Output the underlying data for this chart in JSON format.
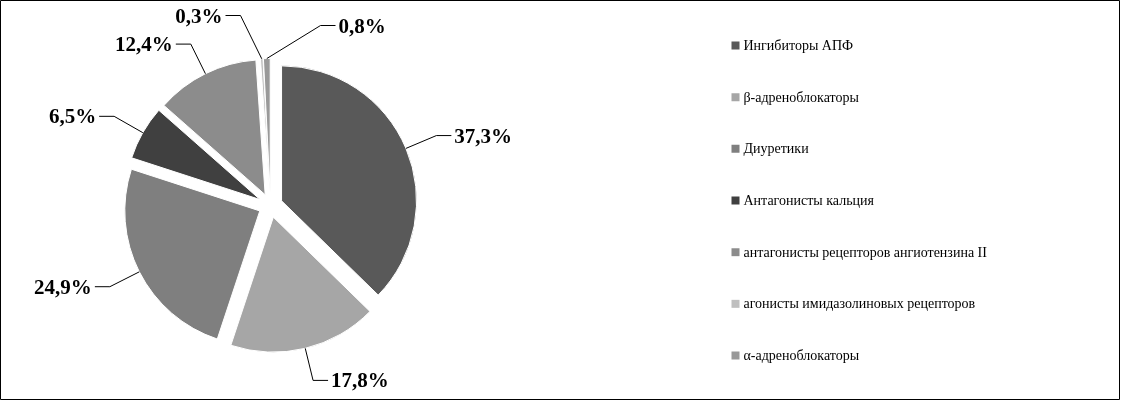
{
  "chart_data": {
    "type": "pie",
    "categories": [
      "Ингибиторы  АПФ",
      "β-адреноблокаторы",
      "Диуретики",
      "Антагонисты  кальция",
      "антагонисты  рецепторов ангиотензина  II",
      "агонисты имидазолиновых  рецепторов",
      "α-адреноблокаторы"
    ],
    "values": [
      37.3,
      17.8,
      24.9,
      6.5,
      12.4,
      0.3,
      0.8
    ],
    "colors": [
      "#595959",
      "#a6a6a6",
      "#7f7f7f",
      "#404040",
      "#8c8c8c",
      "#bfbfbf",
      "#999999"
    ],
    "value_labels": [
      "37,3%",
      "17,8%",
      "24,9%",
      "6,5%",
      "12,4%",
      "0,3%",
      "0,8%"
    ],
    "legend": "right"
  }
}
